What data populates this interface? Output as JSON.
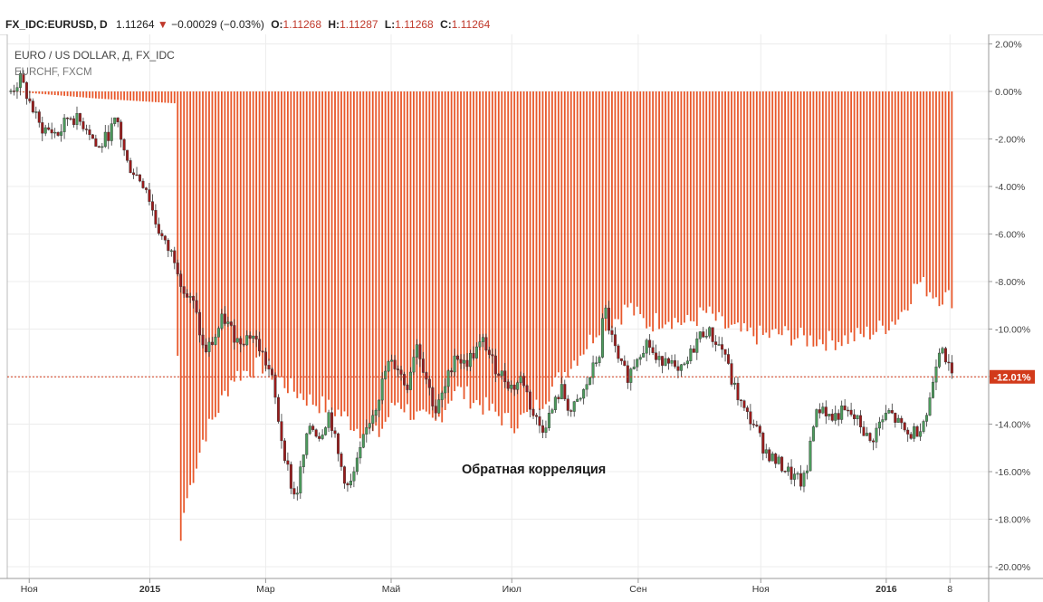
{
  "header": {
    "symbol": "FX_IDC:EURUSD, D",
    "last": "1.11264",
    "change": "−0.00029 (−0.03%)",
    "o_label": "O:",
    "o_value": "1.11268",
    "h_label": "H:",
    "h_value": "1.11287",
    "l_label": "L:",
    "l_value": "1.11268",
    "c_label": "C:",
    "c_value": "1.11264",
    "down_arrow": "▼"
  },
  "chart_data": {
    "type": "bar",
    "title": "EURO / US DOLLAR, Д, FX_IDC",
    "subtitle": "EURCHF, FXCM",
    "annotation": "Обратная корреляция",
    "ylim": [
      -20.0,
      2.0
    ],
    "yticks": [
      "2.00%",
      "0.00%",
      "-2.00%",
      "-4.00%",
      "-6.00%",
      "-8.00%",
      "-10.00%",
      "-12.00%",
      "-14.00%",
      "-16.00%",
      "-18.00%",
      "-20.00%"
    ],
    "ytick_values": [
      2,
      0,
      -2,
      -4,
      -6,
      -8,
      -10,
      -12,
      -14,
      -16,
      -18,
      -20
    ],
    "xticks": [
      {
        "label": "Ноя",
        "bold": false,
        "t": 0.019
      },
      {
        "label": "2015",
        "bold": true,
        "t": 0.144
      },
      {
        "label": "Мар",
        "bold": false,
        "t": 0.264
      },
      {
        "label": "Май",
        "bold": false,
        "t": 0.394
      },
      {
        "label": "Июл",
        "bold": false,
        "t": 0.519
      },
      {
        "label": "Сен",
        "bold": false,
        "t": 0.65
      },
      {
        "label": "Ноя",
        "bold": false,
        "t": 0.777
      },
      {
        "label": "2016",
        "bold": true,
        "t": 0.907
      },
      {
        "label": "8",
        "bold": false,
        "t": 0.973
      }
    ],
    "current_value_label": "-12.01%",
    "current_value": -12.01,
    "series": [
      {
        "name": "EURCHF, FXCM",
        "type": "bar",
        "color": "#e8582b",
        "keypoints": [
          [
            0.0,
            0.0
          ],
          [
            0.09,
            -0.3
          ],
          [
            0.17,
            -0.5
          ],
          [
            0.175,
            -19.3
          ],
          [
            0.18,
            -17.5
          ],
          [
            0.19,
            -16.0
          ],
          [
            0.2,
            -14.5
          ],
          [
            0.21,
            -13.8
          ],
          [
            0.23,
            -12.0
          ],
          [
            0.26,
            -11.5
          ],
          [
            0.29,
            -12.5
          ],
          [
            0.31,
            -13.0
          ],
          [
            0.34,
            -13.5
          ],
          [
            0.36,
            -14.2
          ],
          [
            0.38,
            -14.5
          ],
          [
            0.4,
            -13.0
          ],
          [
            0.42,
            -13.7
          ],
          [
            0.44,
            -14.0
          ],
          [
            0.46,
            -12.5
          ],
          [
            0.48,
            -13.0
          ],
          [
            0.5,
            -13.5
          ],
          [
            0.52,
            -14.0
          ],
          [
            0.54,
            -13.5
          ],
          [
            0.56,
            -12.5
          ],
          [
            0.58,
            -11.5
          ],
          [
            0.6,
            -10.5
          ],
          [
            0.61,
            -9.8
          ],
          [
            0.63,
            -9.5
          ],
          [
            0.64,
            -9.0
          ],
          [
            0.65,
            -9.5
          ],
          [
            0.66,
            -9.8
          ],
          [
            0.68,
            -9.5
          ],
          [
            0.7,
            -9.8
          ],
          [
            0.72,
            -9.3
          ],
          [
            0.74,
            -9.9
          ],
          [
            0.76,
            -10.2
          ],
          [
            0.78,
            -10.3
          ],
          [
            0.8,
            -10.2
          ],
          [
            0.82,
            -10.4
          ],
          [
            0.85,
            -10.5
          ],
          [
            0.88,
            -10.3
          ],
          [
            0.9,
            -10.0
          ],
          [
            0.92,
            -9.5
          ],
          [
            0.94,
            -8.0
          ],
          [
            0.96,
            -8.6
          ],
          [
            0.975,
            -8.7
          ]
        ]
      },
      {
        "name": "EURO / US DOLLAR, Д, FX_IDC",
        "type": "candlestick",
        "up_color": "#4c9a5c",
        "down_color": "#9a1b1b",
        "keypoints": [
          [
            0.0,
            0.0
          ],
          [
            0.01,
            0.5
          ],
          [
            0.03,
            -1.5
          ],
          [
            0.05,
            -1.8
          ],
          [
            0.06,
            -1.0
          ],
          [
            0.08,
            -1.5
          ],
          [
            0.09,
            -2.5
          ],
          [
            0.11,
            -1.2
          ],
          [
            0.12,
            -3.0
          ],
          [
            0.14,
            -4.0
          ],
          [
            0.15,
            -5.5
          ],
          [
            0.16,
            -6.5
          ],
          [
            0.17,
            -7.0
          ],
          [
            0.18,
            -8.5
          ],
          [
            0.19,
            -9.0
          ],
          [
            0.2,
            -11.0
          ],
          [
            0.21,
            -10.5
          ],
          [
            0.22,
            -9.5
          ],
          [
            0.235,
            -10.5
          ],
          [
            0.25,
            -10.2
          ],
          [
            0.26,
            -11.0
          ],
          [
            0.27,
            -12.0
          ],
          [
            0.28,
            -14.5
          ],
          [
            0.29,
            -16.5
          ],
          [
            0.295,
            -17.2
          ],
          [
            0.3,
            -16.0
          ],
          [
            0.31,
            -14.0
          ],
          [
            0.32,
            -14.5
          ],
          [
            0.33,
            -13.5
          ],
          [
            0.34,
            -15.5
          ],
          [
            0.35,
            -16.8
          ],
          [
            0.36,
            -15.5
          ],
          [
            0.37,
            -14.0
          ],
          [
            0.38,
            -13.0
          ],
          [
            0.39,
            -11.5
          ],
          [
            0.4,
            -11.5
          ],
          [
            0.41,
            -12.5
          ],
          [
            0.42,
            -10.5
          ],
          [
            0.43,
            -12.0
          ],
          [
            0.44,
            -13.5
          ],
          [
            0.45,
            -12.5
          ],
          [
            0.46,
            -11.0
          ],
          [
            0.47,
            -11.5
          ],
          [
            0.48,
            -11.0
          ],
          [
            0.49,
            -10.5
          ],
          [
            0.5,
            -11.5
          ],
          [
            0.51,
            -12.0
          ],
          [
            0.52,
            -12.5
          ],
          [
            0.53,
            -12.0
          ],
          [
            0.54,
            -13.5
          ],
          [
            0.55,
            -14.2
          ],
          [
            0.56,
            -13.5
          ],
          [
            0.57,
            -12.5
          ],
          [
            0.58,
            -13.5
          ],
          [
            0.59,
            -13.0
          ],
          [
            0.6,
            -12.0
          ],
          [
            0.61,
            -11.0
          ],
          [
            0.615,
            -9.0
          ],
          [
            0.62,
            -10.0
          ],
          [
            0.63,
            -11.5
          ],
          [
            0.64,
            -12.0
          ],
          [
            0.65,
            -11.0
          ],
          [
            0.66,
            -10.5
          ],
          [
            0.67,
            -11.5
          ],
          [
            0.68,
            -11.0
          ],
          [
            0.69,
            -12.0
          ],
          [
            0.7,
            -11.5
          ],
          [
            0.71,
            -10.5
          ],
          [
            0.72,
            -10.0
          ],
          [
            0.73,
            -10.5
          ],
          [
            0.74,
            -11.0
          ],
          [
            0.745,
            -12.0
          ],
          [
            0.75,
            -12.5
          ],
          [
            0.76,
            -13.5
          ],
          [
            0.77,
            -14.0
          ],
          [
            0.78,
            -15.0
          ],
          [
            0.79,
            -15.5
          ],
          [
            0.8,
            -15.8
          ],
          [
            0.81,
            -16.2
          ],
          [
            0.82,
            -16.5
          ],
          [
            0.825,
            -16.0
          ],
          [
            0.83,
            -14.0
          ],
          [
            0.84,
            -13.2
          ],
          [
            0.85,
            -13.8
          ],
          [
            0.86,
            -13.5
          ],
          [
            0.87,
            -13.6
          ],
          [
            0.88,
            -14.0
          ],
          [
            0.89,
            -14.8
          ],
          [
            0.9,
            -14.0
          ],
          [
            0.91,
            -13.5
          ],
          [
            0.92,
            -14.0
          ],
          [
            0.93,
            -14.5
          ],
          [
            0.94,
            -14.2
          ],
          [
            0.95,
            -13.5
          ],
          [
            0.96,
            -11.0
          ],
          [
            0.965,
            -10.5
          ],
          [
            0.97,
            -11.5
          ],
          [
            0.975,
            -12.0
          ]
        ]
      }
    ]
  }
}
